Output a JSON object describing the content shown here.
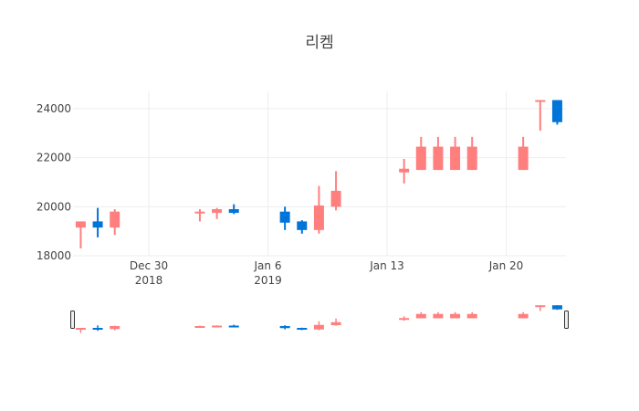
{
  "title": "리켐",
  "colors": {
    "increasing": "#FF7F7F",
    "decreasing": "#0074D9",
    "grid": "#EEEEEE"
  },
  "chart_data": {
    "type": "candlestick",
    "title": "리켐",
    "xlabel": "",
    "ylabel": "",
    "ylim": [
      18000,
      24800
    ],
    "y_ticks": [
      18000,
      20000,
      22000,
      24000
    ],
    "x_ticks": [
      {
        "date": "2018-12-30",
        "label": "Dec 30",
        "sublabel": "2018"
      },
      {
        "date": "2019-01-06",
        "label": "Jan 6",
        "sublabel": "2019"
      },
      {
        "date": "2019-01-13",
        "label": "Jan 13",
        "sublabel": ""
      },
      {
        "date": "2019-01-20",
        "label": "Jan 20",
        "sublabel": ""
      }
    ],
    "grid": true,
    "rangeslider": true,
    "data": [
      {
        "date": "2018-12-26",
        "open": 19150,
        "high": 19400,
        "low": 18300,
        "close": 19400
      },
      {
        "date": "2018-12-27",
        "open": 19400,
        "high": 19950,
        "low": 18750,
        "close": 19150
      },
      {
        "date": "2018-12-28",
        "open": 19150,
        "high": 19900,
        "low": 18850,
        "close": 19800
      },
      {
        "date": "2019-01-02",
        "open": 19750,
        "high": 19900,
        "low": 19400,
        "close": 19800
      },
      {
        "date": "2019-01-03",
        "open": 19750,
        "high": 19950,
        "low": 19500,
        "close": 19900
      },
      {
        "date": "2019-01-04",
        "open": 19900,
        "high": 20100,
        "low": 19700,
        "close": 19750
      },
      {
        "date": "2019-01-07",
        "open": 19800,
        "high": 20000,
        "low": 19050,
        "close": 19350
      },
      {
        "date": "2019-01-08",
        "open": 19400,
        "high": 19450,
        "low": 18900,
        "close": 19050
      },
      {
        "date": "2019-01-09",
        "open": 19050,
        "high": 20850,
        "low": 18900,
        "close": 20050
      },
      {
        "date": "2019-01-10",
        "open": 20000,
        "high": 21450,
        "low": 19850,
        "close": 20650
      },
      {
        "date": "2019-01-14",
        "open": 21400,
        "high": 21950,
        "low": 20950,
        "close": 21550
      },
      {
        "date": "2019-01-15",
        "open": 21500,
        "high": 22850,
        "low": 21500,
        "close": 22450
      },
      {
        "date": "2019-01-16",
        "open": 21500,
        "high": 22850,
        "low": 21500,
        "close": 22450
      },
      {
        "date": "2019-01-17",
        "open": 21500,
        "high": 22850,
        "low": 21500,
        "close": 22450
      },
      {
        "date": "2019-01-18",
        "open": 21500,
        "high": 22850,
        "low": 21500,
        "close": 22450
      },
      {
        "date": "2019-01-21",
        "open": 21500,
        "high": 22850,
        "low": 21500,
        "close": 22450
      },
      {
        "date": "2019-01-22",
        "open": 24300,
        "high": 24350,
        "low": 23100,
        "close": 24350
      },
      {
        "date": "2019-01-23",
        "open": 24350,
        "high": 24350,
        "low": 23350,
        "close": 23450
      }
    ]
  }
}
